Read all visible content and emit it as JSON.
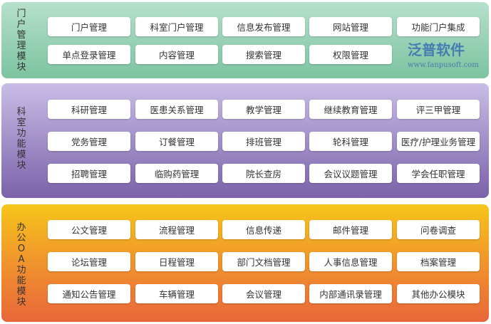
{
  "sections": [
    {
      "label": "门户管理模块",
      "color": "#7cc3a0",
      "rows": [
        [
          "门户管理",
          "科室门户管理",
          "信息发布管理",
          "网站管理",
          "功能门户集成"
        ],
        [
          "单点登录管理",
          "内容管理",
          "搜索管理",
          "权限管理"
        ]
      ]
    },
    {
      "label": "科室功能模块",
      "color": "#7b62aa",
      "rows": [
        [
          "科研管理",
          "医患关系管理",
          "教学管理",
          "继续教育管理",
          "评三甲管理"
        ],
        [
          "党务管理",
          "订餐管理",
          "排班管理",
          "轮科管理",
          "医疗/护理业务管理"
        ],
        [
          "招聘管理",
          "临购药管理",
          "院长查房",
          "会议议题管理",
          "学会任职管理"
        ]
      ]
    },
    {
      "label": "办公OA功能模块",
      "color": "#ef8a30",
      "rows": [
        [
          "公文管理",
          "流程管理",
          "信息传递",
          "邮件管理",
          "问卷调查"
        ],
        [
          "论坛管理",
          "日程管理",
          "部门文档管理",
          "人事信息管理",
          "档案管理"
        ],
        [
          "通知公告管理",
          "车辆管理",
          "会议管理",
          "内部通讯录管理",
          "其他办公模块"
        ]
      ]
    }
  ],
  "watermark": {
    "brand": "泛普软件",
    "url": "www.fanpusoft.com"
  }
}
